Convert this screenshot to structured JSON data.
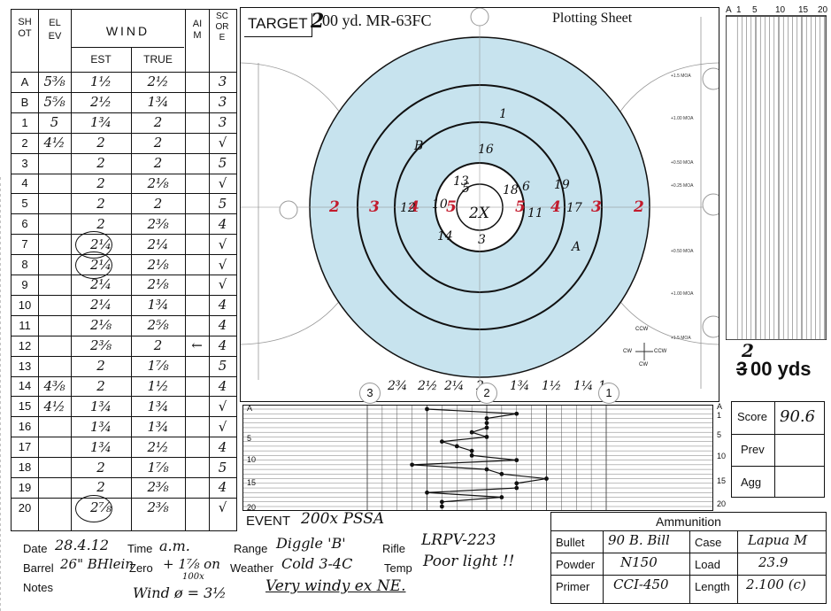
{
  "header": {
    "target_label": "TARGET",
    "target_distance_mark": "2",
    "target_name": "00 yd. MR-63FC",
    "sheet_title": "Plotting Sheet"
  },
  "table": {
    "col_shot": "SHOT",
    "col_elev": "ELEV",
    "col_wind": "WIND",
    "col_est": "EST",
    "col_true": "TRUE",
    "col_aim": "AIM",
    "col_score": "SCORE",
    "rows": [
      {
        "shot": "A",
        "elev": "5⅜",
        "est": "1½",
        "true": "2½",
        "aim": "",
        "score": "3"
      },
      {
        "shot": "B",
        "elev": "5⅝",
        "est": "2½",
        "true": "1¾",
        "aim": "",
        "score": "3"
      },
      {
        "shot": "1",
        "elev": "5",
        "est": "1¾",
        "true": "2",
        "aim": "",
        "score": "3"
      },
      {
        "shot": "2",
        "elev": "4½",
        "est": "2",
        "true": "2",
        "aim": "",
        "score": "√"
      },
      {
        "shot": "3",
        "elev": "",
        "est": "2",
        "true": "2",
        "aim": "",
        "score": "5"
      },
      {
        "shot": "4",
        "elev": "",
        "est": "2",
        "true": "2⅛",
        "aim": "",
        "score": "√"
      },
      {
        "shot": "5",
        "elev": "",
        "est": "2",
        "true": "2",
        "aim": "",
        "score": "5"
      },
      {
        "shot": "6",
        "elev": "",
        "est": "2",
        "true": "2⅜",
        "aim": "",
        "score": "4"
      },
      {
        "shot": "7",
        "elev": "",
        "est": "2¼",
        "true": "2¼",
        "aim": "",
        "score": "√"
      },
      {
        "shot": "8",
        "elev": "",
        "est": "2¼",
        "true": "2⅛",
        "aim": "",
        "score": "√"
      },
      {
        "shot": "9",
        "elev": "",
        "est": "2¼",
        "true": "2⅛",
        "aim": "",
        "score": "√"
      },
      {
        "shot": "10",
        "elev": "",
        "est": "2¼",
        "true": "1¾",
        "aim": "",
        "score": "4"
      },
      {
        "shot": "11",
        "elev": "",
        "est": "2⅛",
        "true": "2⅝",
        "aim": "",
        "score": "4"
      },
      {
        "shot": "12",
        "elev": "",
        "est": "2⅜",
        "true": "2",
        "aim": "←",
        "score": "4"
      },
      {
        "shot": "13",
        "elev": "",
        "est": "2",
        "true": "1⅞",
        "aim": "",
        "score": "5"
      },
      {
        "shot": "14",
        "elev": "4⅜",
        "est": "2",
        "true": "1½",
        "aim": "",
        "score": "4"
      },
      {
        "shot": "15",
        "elev": "4½",
        "est": "1¾",
        "true": "1¾",
        "aim": "",
        "score": "√"
      },
      {
        "shot": "16",
        "elev": "",
        "est": "1¾",
        "true": "1¾",
        "aim": "",
        "score": "√"
      },
      {
        "shot": "17",
        "elev": "",
        "est": "1¾",
        "true": "2½",
        "aim": "",
        "score": "4"
      },
      {
        "shot": "18",
        "elev": "",
        "est": "2",
        "true": "1⅞",
        "aim": "",
        "score": "5"
      },
      {
        "shot": "19",
        "elev": "",
        "est": "2",
        "true": "2⅜",
        "aim": "",
        "score": "4"
      },
      {
        "shot": "20",
        "elev": "",
        "est": "2⅞",
        "true": "2⅜",
        "aim": "",
        "score": "√"
      }
    ]
  },
  "target": {
    "ring_values": [
      "2",
      "3",
      "4",
      "5",
      "2",
      "3",
      "4",
      "5"
    ],
    "shot_labels": [
      "1",
      "B",
      "16",
      "13",
      "5",
      "18",
      "6",
      "19",
      "10",
      "12",
      "17",
      "11",
      "14",
      "3",
      "A"
    ],
    "center_label": "2X"
  },
  "range_strip": {
    "distance_mark": "2",
    "distance_mark_struck": "3",
    "distance_text": "00 yds"
  },
  "wind_graph": {
    "axis_left_labels": [
      "A",
      "5",
      "10",
      "15",
      "20"
    ],
    "axis_right_labels": [
      "A",
      "1",
      "5",
      "10",
      "15",
      "20"
    ],
    "top_labels": [
      "2¾",
      "2½",
      "2¼",
      "2",
      "1¾",
      "1½",
      "1¼",
      "1"
    ],
    "circle_marks": [
      "3",
      "2",
      "1"
    ],
    "path_points": [
      {
        "shot": "A",
        "wind": 2.5
      },
      {
        "shot": "B",
        "wind": 1.75
      },
      {
        "shot": "1",
        "wind": 2
      },
      {
        "shot": "2",
        "wind": 2
      },
      {
        "shot": "3",
        "wind": 2
      },
      {
        "shot": "4",
        "wind": 2.125
      },
      {
        "shot": "5",
        "wind": 2
      },
      {
        "shot": "6",
        "wind": 2.375
      },
      {
        "shot": "7",
        "wind": 2.25
      },
      {
        "shot": "8",
        "wind": 2.125
      },
      {
        "shot": "9",
        "wind": 2.125
      },
      {
        "shot": "10",
        "wind": 1.75
      },
      {
        "shot": "11",
        "wind": 2.625
      },
      {
        "shot": "12",
        "wind": 2
      },
      {
        "shot": "13",
        "wind": 1.875
      },
      {
        "shot": "14",
        "wind": 1.5
      },
      {
        "shot": "15",
        "wind": 1.75
      },
      {
        "shot": "16",
        "wind": 1.75
      },
      {
        "shot": "17",
        "wind": 2.5
      },
      {
        "shot": "18",
        "wind": 1.875
      },
      {
        "shot": "19",
        "wind": 2.375
      },
      {
        "shot": "20",
        "wind": 2.375
      }
    ]
  },
  "elevation_chart": {
    "axis_labels": [
      "A",
      "1",
      "5",
      "10",
      "15",
      "20"
    ]
  },
  "target_scale_labels": [
    "+1.5 MOA",
    "+1.00 MOA",
    "+0.50 MOA",
    "+0.25 MOA",
    "+0.50 MOA",
    "+1.00 MOA",
    "+1.5 MOA"
  ],
  "compass": {
    "ccw": "CCW",
    "cw_left": "CW",
    "ccw_right": "CCW",
    "cw_bottom": "CW"
  },
  "score": {
    "score_label": "Score",
    "score_value": "90.6",
    "prev_label": "Prev",
    "prev_value": "",
    "agg_label": "Agg",
    "agg_value": ""
  },
  "event": {
    "label": "EVENT",
    "value": "200x PSSA"
  },
  "details": {
    "date_label": "Date",
    "date_value": "28.4.12",
    "time_label": "Time",
    "time_value": "a.m.",
    "range_label": "Range",
    "range_value": "Diggle 'B'",
    "rifle_label": "Rifle",
    "rifle_value": "LRPV-223",
    "barrel_label": "Barrel",
    "barrel_value": "26\" BHlein",
    "zero_label": "Zero",
    "zero_value": "+ 1⅞ on",
    "weather_label": "Weather",
    "weather_value": "Cold 3-4C",
    "temp_label": "Temp",
    "temp_value": "Poor light !!",
    "notes_label": "Notes",
    "notes_wind": "Wind ø = 3½",
    "notes_wind_sup": "100x",
    "notes_value": "Very windy ex NE."
  },
  "ammunition": {
    "title": "Ammunition",
    "bullet_label": "Bullet",
    "bullet_value": "90 B. Bill",
    "case_label": "Case",
    "case_value": "Lapua M",
    "powder_label": "Powder",
    "powder_value": "N150",
    "load_label": "Load",
    "load_value": "23.9",
    "primer_label": "Primer",
    "primer_value": "CCI-450",
    "length_label": "Length",
    "length_value": "2.100 (c)"
  },
  "colors": {
    "target_blue": "#c7e3ee",
    "ink_red": "#c21a2c",
    "ink": "#111111"
  }
}
